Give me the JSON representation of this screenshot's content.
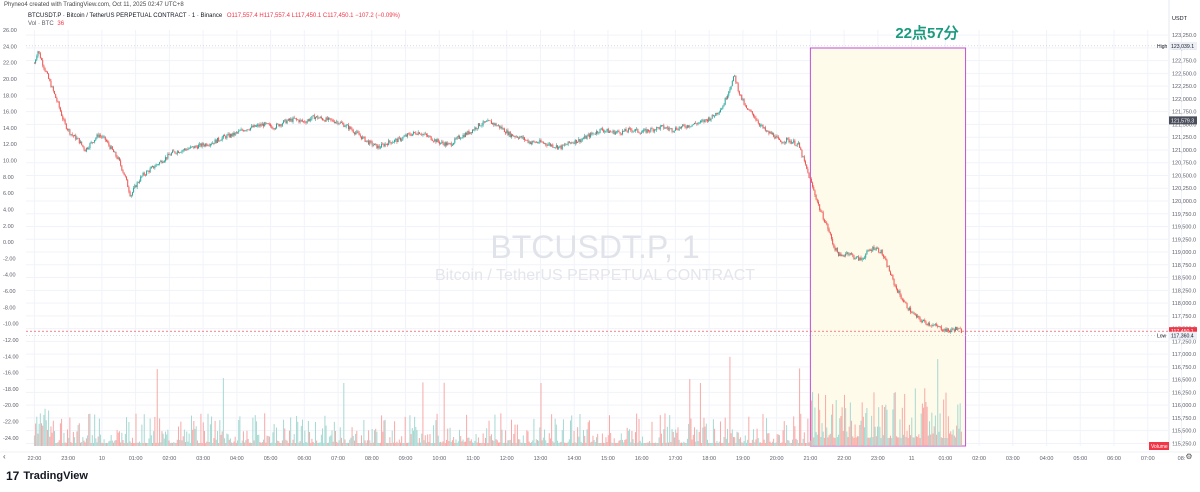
{
  "header": {
    "created_by": "Phyneo4 created with TradingView.com, Oct 11, 2025 02:47 UTC+8",
    "symbol_line": "BTCUSDT.P · Bitcoin / TetherUS PERPETUAL CONTRACT · 1 · Binance",
    "ohlc_line": "O117,557.4 H117,557.4 L117,450.1 C117,450.1 −107.2 (−0.09%)",
    "volume_label": "Vol · BTC",
    "volume_value": "36"
  },
  "watermark": {
    "symbol": "BTCUSDT.P, 1",
    "description": "Bitcoin / TetherUS PERPETUAL CONTRACT"
  },
  "annotation": {
    "text": "22点57分"
  },
  "right_axis": {
    "currency": "USDT",
    "high_tag": "High",
    "high_value": "123,039.1",
    "current_price": "121,579.3",
    "last_price": "117,450.1",
    "low_tag": "Low",
    "low_value": "117,360.4",
    "volume_tag": "Volume",
    "volume_tag_value": "36"
  },
  "footer": {
    "brand": "TradingView"
  },
  "colors": {
    "up": "#26a69a",
    "down": "#ef5350",
    "highlight_border": "#c04fd6",
    "highlight_fill": "#fffbea",
    "annotation": "#1a9a7e"
  },
  "chart_data": {
    "type": "line",
    "title": "BTCUSDT.P, 1",
    "left_axis": {
      "ticks": [
        "26.00",
        "24.00",
        "22.00",
        "20.00",
        "18.00",
        "16.00",
        "14.00",
        "12.00",
        "10.00",
        "8.00",
        "6.00",
        "4.00",
        "2.00",
        "0.00",
        "-2.00",
        "-4.00",
        "-6.00",
        "-8.00",
        "-10.00",
        "-12.00",
        "-14.00",
        "-16.00",
        "-18.00",
        "-20.00",
        "-22.00",
        "-24.00"
      ],
      "ylim": [
        -25,
        26
      ]
    },
    "right_axis": {
      "ticks": [
        "123,250.0",
        "123,000.0",
        "122,750.0",
        "122,500.0",
        "122,250.0",
        "122,000.0",
        "121,750.0",
        "121,500.0",
        "121,250.0",
        "121,000.0",
        "120,750.0",
        "120,500.0",
        "120,250.0",
        "120,000.0",
        "119,750.0",
        "119,500.0",
        "119,250.0",
        "119,000.0",
        "118,750.0",
        "118,500.0",
        "118,250.0",
        "118,000.0",
        "117,750.0",
        "117,500.0",
        "117,250.0",
        "117,000.0",
        "116,750.0",
        "116,500.0",
        "116,250.0",
        "116,000.0",
        "115,750.0",
        "115,500.0",
        "115,250.0"
      ],
      "ylim": [
        115200,
        123350
      ]
    },
    "x_ticks": [
      "22:00",
      "23:00",
      "10",
      "01:00",
      "02:00",
      "03:00",
      "04:00",
      "05:00",
      "06:00",
      "07:00",
      "08:00",
      "09:00",
      "10:00",
      "11:00",
      "12:00",
      "13:00",
      "14:00",
      "15:00",
      "16:00",
      "17:00",
      "18:00",
      "19:00",
      "20:00",
      "21:00",
      "22:00",
      "23:00",
      "11",
      "01:00",
      "02:00",
      "03:00",
      "04:00",
      "05:00",
      "06:00",
      "07:00",
      "08:"
    ],
    "x_range_hours": [
      -0.25,
      33.6
    ],
    "series": [
      {
        "values": [
          [
            0.0,
            122700
          ],
          [
            0.1,
            122950
          ],
          [
            0.3,
            122600
          ],
          [
            0.5,
            122250
          ],
          [
            0.7,
            121900
          ],
          [
            0.9,
            121500
          ],
          [
            1.1,
            121300
          ],
          [
            1.3,
            121200
          ],
          [
            1.5,
            121000
          ],
          [
            1.7,
            121150
          ],
          [
            1.9,
            121300
          ],
          [
            2.1,
            121200
          ],
          [
            2.3,
            121000
          ],
          [
            2.5,
            120800
          ],
          [
            2.7,
            120450
          ],
          [
            2.85,
            120100
          ],
          [
            3.0,
            120300
          ],
          [
            3.2,
            120500
          ],
          [
            3.5,
            120650
          ],
          [
            3.8,
            120800
          ],
          [
            4.1,
            120950
          ],
          [
            4.4,
            121000
          ],
          [
            4.7,
            121050
          ],
          [
            5.0,
            121100
          ],
          [
            5.3,
            121150
          ],
          [
            5.6,
            121250
          ],
          [
            5.9,
            121300
          ],
          [
            6.2,
            121400
          ],
          [
            6.5,
            121450
          ],
          [
            6.8,
            121500
          ],
          [
            7.1,
            121450
          ],
          [
            7.4,
            121550
          ],
          [
            7.7,
            121600
          ],
          [
            8.0,
            121550
          ],
          [
            8.3,
            121650
          ],
          [
            8.6,
            121600
          ],
          [
            9.0,
            121550
          ],
          [
            9.3,
            121450
          ],
          [
            9.6,
            121300
          ],
          [
            9.9,
            121150
          ],
          [
            10.2,
            121050
          ],
          [
            10.5,
            121150
          ],
          [
            10.8,
            121200
          ],
          [
            11.1,
            121300
          ],
          [
            11.4,
            121350
          ],
          [
            11.7,
            121250
          ],
          [
            12.0,
            121150
          ],
          [
            12.3,
            121100
          ],
          [
            12.6,
            121250
          ],
          [
            12.9,
            121350
          ],
          [
            13.2,
            121500
          ],
          [
            13.5,
            121550
          ],
          [
            13.8,
            121450
          ],
          [
            14.1,
            121300
          ],
          [
            14.4,
            121250
          ],
          [
            14.7,
            121150
          ],
          [
            15.0,
            121150
          ],
          [
            15.3,
            121100
          ],
          [
            15.6,
            121050
          ],
          [
            15.9,
            121150
          ],
          [
            16.2,
            121200
          ],
          [
            16.5,
            121300
          ],
          [
            16.8,
            121400
          ],
          [
            17.1,
            121350
          ],
          [
            17.4,
            121350
          ],
          [
            17.7,
            121400
          ],
          [
            18.0,
            121350
          ],
          [
            18.3,
            121400
          ],
          [
            18.6,
            121450
          ],
          [
            18.9,
            121400
          ],
          [
            19.2,
            121450
          ],
          [
            19.5,
            121500
          ],
          [
            19.8,
            121550
          ],
          [
            20.1,
            121650
          ],
          [
            20.4,
            121850
          ],
          [
            20.6,
            122200
          ],
          [
            20.75,
            122450
          ],
          [
            20.9,
            122100
          ],
          [
            21.1,
            121800
          ],
          [
            21.3,
            121700
          ],
          [
            21.5,
            121500
          ],
          [
            21.7,
            121350
          ],
          [
            21.9,
            121300
          ],
          [
            22.1,
            121150
          ],
          [
            22.3,
            121200
          ],
          [
            22.5,
            121150
          ],
          [
            22.65,
            121100
          ],
          [
            22.8,
            120800
          ],
          [
            22.95,
            120500
          ],
          [
            23.1,
            120200
          ],
          [
            23.3,
            119800
          ],
          [
            23.5,
            119500
          ],
          [
            23.7,
            119100
          ],
          [
            23.9,
            118900
          ],
          [
            24.1,
            119000
          ],
          [
            24.3,
            118900
          ],
          [
            24.5,
            118850
          ],
          [
            24.7,
            119000
          ],
          [
            24.9,
            119100
          ],
          [
            25.1,
            119000
          ],
          [
            25.3,
            118700
          ],
          [
            25.5,
            118350
          ],
          [
            25.7,
            118100
          ],
          [
            25.9,
            117900
          ],
          [
            26.1,
            117750
          ],
          [
            26.3,
            117650
          ],
          [
            26.5,
            117600
          ],
          [
            26.7,
            117550
          ],
          [
            26.9,
            117500
          ],
          [
            27.1,
            117450
          ],
          [
            27.3,
            117500
          ],
          [
            27.5,
            117450
          ]
        ]
      }
    ],
    "high": 123039.1,
    "low": 117360.4,
    "last": 117450.1,
    "highlight_start_hour": 23.0,
    "highlight_end_hour": 27.6
  }
}
